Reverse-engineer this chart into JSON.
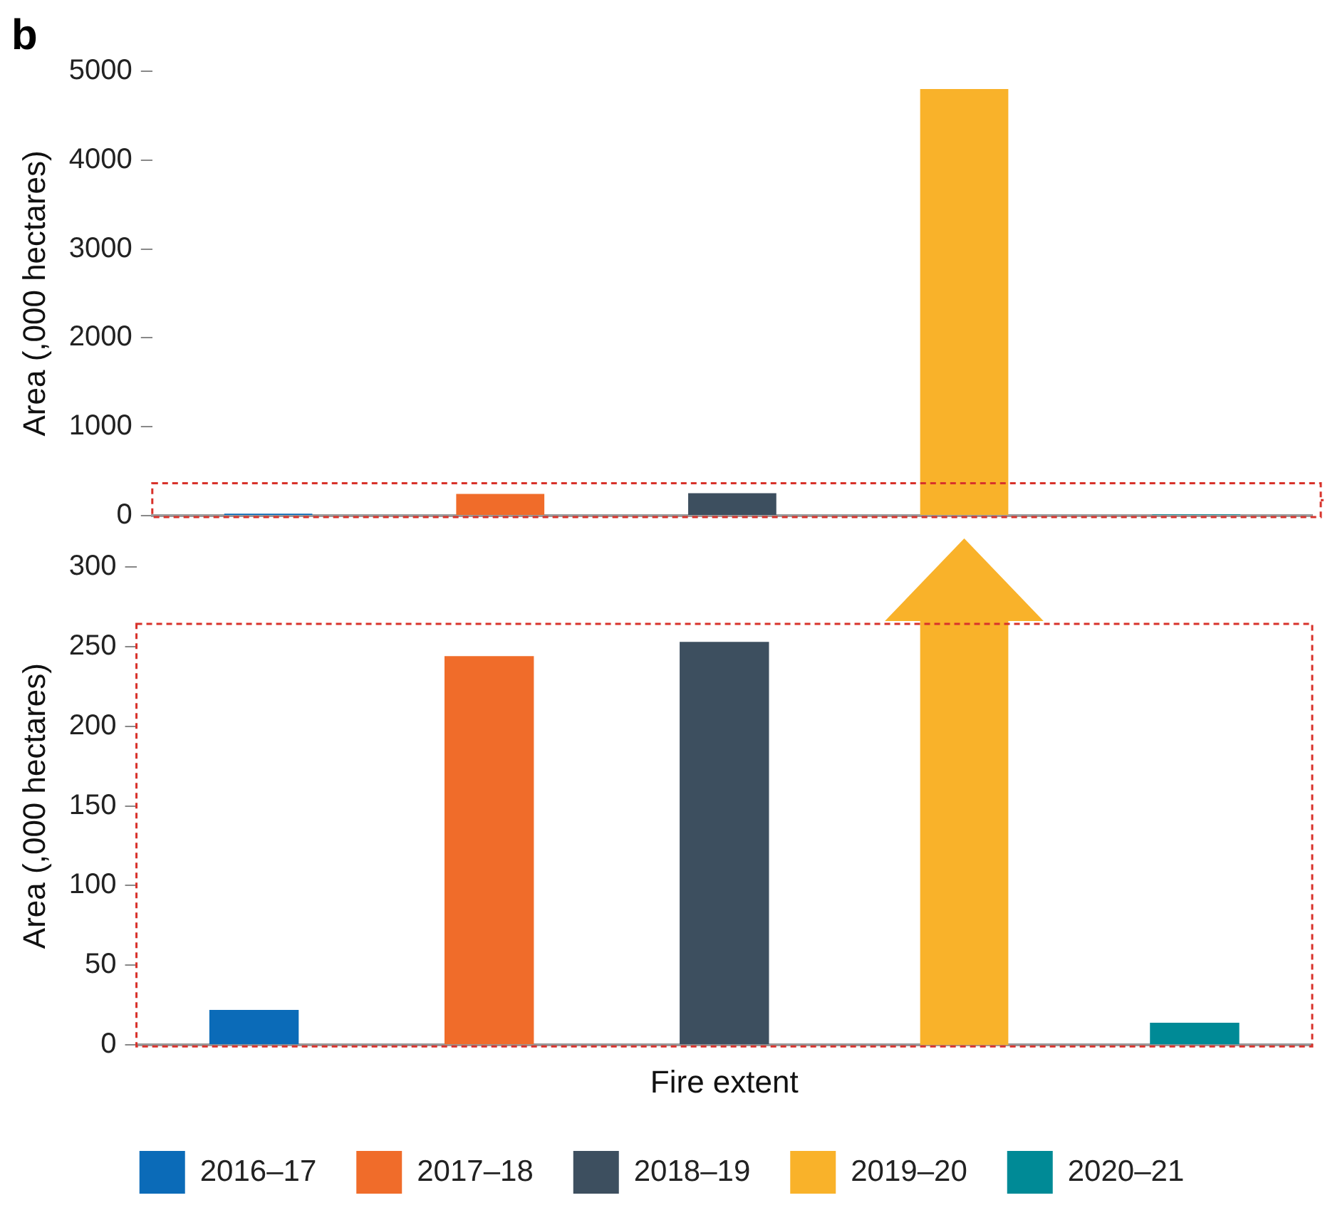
{
  "chart_data": [
    {
      "type": "bar",
      "title": "b",
      "categories": [
        null,
        null,
        null,
        null,
        null
      ],
      "series": [
        {
          "color": "#0b6bb8",
          "values": [
            22,
            null,
            null,
            null,
            null
          ]
        },
        {
          "color": "#f06c2a",
          "values": [
            null,
            244,
            null,
            null,
            null
          ]
        },
        {
          "color": "#3d4f5f",
          "values": [
            null,
            null,
            253,
            null,
            null
          ]
        },
        {
          "color": "#f9b22a",
          "values": [
            null,
            null,
            null,
            4800,
            null
          ]
        },
        {
          "color": "#008a96",
          "values": [
            null,
            null,
            null,
            null,
            14
          ]
        }
      ],
      "ylabel": "Area (,000 hectares)",
      "ylim": [
        0,
        5000
      ],
      "yticks": [
        0,
        1000,
        2000,
        3000,
        4000,
        5000
      ],
      "grid": false,
      "legend": false,
      "tick_labels": "y"
    },
    {
      "type": "bar",
      "categories": [
        null,
        null,
        null,
        null,
        null
      ],
      "series": [
        {
          "name": "2016–17",
          "color": "#0b6bb8",
          "values": [
            22,
            null,
            null,
            null,
            null
          ]
        },
        {
          "name": "2017–18",
          "color": "#f06c2a",
          "values": [
            null,
            244,
            null,
            null,
            null
          ]
        },
        {
          "name": "2018–19",
          "color": "#3d4f5f",
          "values": [
            null,
            null,
            253,
            null,
            null
          ]
        },
        {
          "name": "2019–20",
          "color": "#f9b22a",
          "values": [
            null,
            null,
            null,
            null,
            null
          ]
        },
        {
          "name": "2020–21",
          "color": "#008a96",
          "values": [
            null,
            null,
            null,
            null,
            14
          ]
        }
      ],
      "xlabel": "Fire extent",
      "ylabel": "Area (,000 hectares)",
      "ylim": [
        0,
        300
      ],
      "yticks": [
        0,
        50,
        100,
        150,
        200,
        250,
        300
      ],
      "grid": false,
      "legend": "bottom",
      "tick_labels": "y"
    }
  ]
}
